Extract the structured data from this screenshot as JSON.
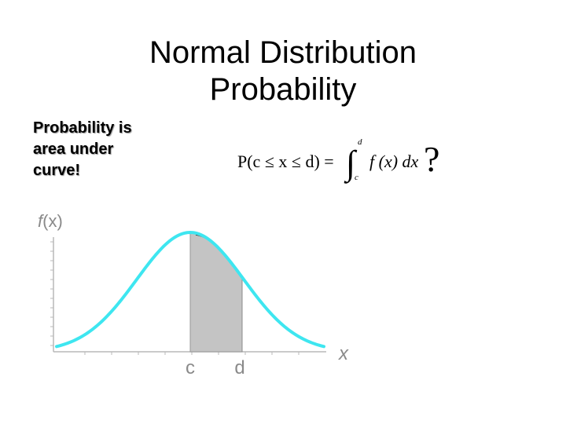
{
  "title": {
    "line1": "Normal Distribution",
    "line2": "Probability"
  },
  "note": {
    "line1": "Probability is",
    "line2": "area under",
    "line3": "curve!"
  },
  "formula": {
    "text": "P(c ≤ x ≤ d) = ∫ f(x) dx",
    "lhs": "P(c ≤ x ≤ d) =",
    "integral_symbol": "∫",
    "upper_limit": "d",
    "lower_limit": "c",
    "integrand": "f (x) dx",
    "question_mark": "?"
  },
  "plot": {
    "y_axis_label_f": "f",
    "y_axis_label_x": "(x)",
    "x_axis_label": "x",
    "bound_left_label": "c",
    "bound_right_label": "d",
    "colors": {
      "curve": "#3ee6f0",
      "shade": "#c4c4c4",
      "axis": "#b8b8b8",
      "label": "#8a8a8a"
    }
  },
  "chart_data": {
    "type": "area",
    "title": "",
    "xlabel": "x",
    "ylabel": "f(x)",
    "curve": "normal density",
    "shaded_region": {
      "from": "c",
      "to": "d",
      "side": "right of mean"
    },
    "grid": false
  }
}
